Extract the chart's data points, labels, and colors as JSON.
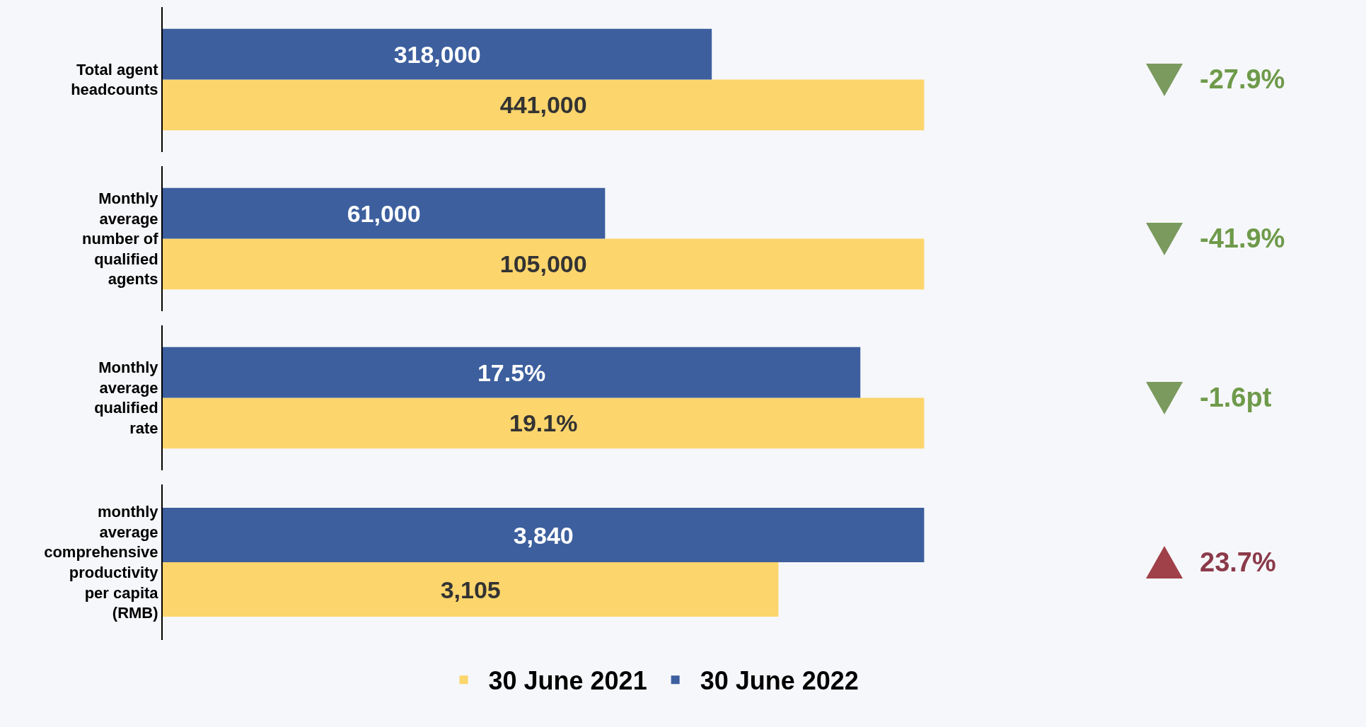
{
  "chart_data": [
    {
      "type": "bar",
      "orientation": "horizontal",
      "categories": [
        "Total agent headcounts"
      ],
      "tick_labels": "y",
      "annotations": [
        "-27.9%"
      ],
      "series": [
        {
          "color": "#fcd56c",
          "values": [
            441000
          ],
          "value_labels": [
            "441,000"
          ]
        },
        {
          "color": "#3d5f9e",
          "values": [
            318000
          ],
          "value_labels": [
            "318,000"
          ]
        }
      ]
    },
    {
      "type": "bar",
      "orientation": "horizontal",
      "categories": [
        "Monthly average number of qualified agents"
      ],
      "tick_labels": "y",
      "annotations": [
        "-41.9%"
      ],
      "series": [
        {
          "color": "#fcd56c",
          "values": [
            105000
          ],
          "value_labels": [
            "105,000"
          ]
        },
        {
          "color": "#3d5f9e",
          "values": [
            61000
          ],
          "value_labels": [
            "61,000"
          ]
        }
      ]
    },
    {
      "type": "bar",
      "orientation": "horizontal",
      "categories": [
        "Monthly average qualified rate"
      ],
      "tick_labels": "y",
      "annotations": [
        "-1.6pt"
      ],
      "series": [
        {
          "color": "#fcd56c",
          "values": [
            19.1
          ],
          "value_labels": [
            "19.1%"
          ]
        },
        {
          "color": "#3d5f9e",
          "values": [
            17.5
          ],
          "value_labels": [
            "17.5%"
          ]
        }
      ]
    },
    {
      "type": "bar",
      "orientation": "horizontal",
      "categories": [
        "monthly average comprehensive productivity per capita (RMB)"
      ],
      "tick_labels": "y",
      "legend": "bottom",
      "annotations": [
        "23.7%"
      ],
      "series": [
        {
          "name": "30 June 2021",
          "color": "#fcd56c",
          "values": [
            3105
          ],
          "value_labels": [
            "3,105"
          ]
        },
        {
          "name": "30 June 2022",
          "color": "#3d5f9e",
          "values": [
            3840
          ],
          "value_labels": [
            "3,840"
          ]
        }
      ]
    }
  ]
}
